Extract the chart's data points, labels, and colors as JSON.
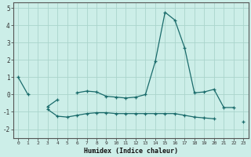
{
  "xlabel": "Humidex (Indice chaleur)",
  "background_color": "#cceee8",
  "grid_color": "#aad4cc",
  "line_color": "#1a6b6b",
  "x": [
    0,
    1,
    2,
    3,
    4,
    5,
    6,
    7,
    8,
    9,
    10,
    11,
    12,
    13,
    14,
    15,
    16,
    17,
    18,
    19,
    20,
    21,
    22,
    23
  ],
  "line1": [
    1.0,
    0.0,
    null,
    -0.7,
    -0.3,
    null,
    0.1,
    0.2,
    0.15,
    -0.1,
    -0.15,
    -0.2,
    -0.15,
    0.0,
    1.9,
    4.75,
    4.3,
    2.7,
    0.1,
    0.15,
    0.3,
    -0.75,
    -0.75,
    null
  ],
  "line2": [
    null,
    null,
    null,
    -0.85,
    -1.25,
    -1.3,
    -1.2,
    -1.1,
    -1.05,
    -1.05,
    -1.1,
    -1.1,
    -1.1,
    -1.1,
    -1.1,
    -1.1,
    -1.1,
    -1.2,
    -1.3,
    -1.35,
    -1.4,
    null,
    null,
    -1.55
  ],
  "ylim": [
    -2.5,
    5.3
  ],
  "xlim": [
    -0.5,
    23.5
  ],
  "yticks": [
    -2,
    -1,
    0,
    1,
    2,
    3,
    4,
    5
  ],
  "xticks": [
    0,
    1,
    2,
    3,
    4,
    5,
    6,
    7,
    8,
    9,
    10,
    11,
    12,
    13,
    14,
    15,
    16,
    17,
    18,
    19,
    20,
    21,
    22,
    23
  ]
}
